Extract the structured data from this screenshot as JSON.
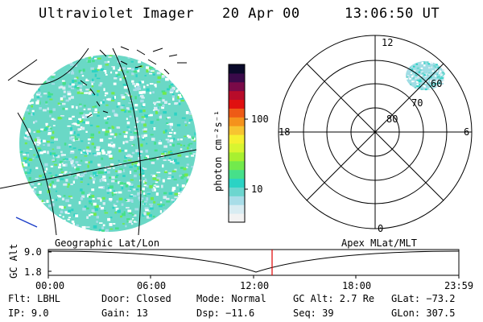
{
  "header": {
    "title": "Ultraviolet Imager",
    "date": "20 Apr 00",
    "time": "13:06:50 UT"
  },
  "colorbar": {
    "unit_label": "photon cm⁻²s⁻¹",
    "tick_100": "100",
    "tick_10": "10",
    "colors": [
      "#f2f2f2",
      "#d8ecf2",
      "#a8dde8",
      "#6cd6cf",
      "#2bd3c4",
      "#46e08a",
      "#72ea4c",
      "#a8f030",
      "#d8f530",
      "#f5f030",
      "#f7c430",
      "#f5921c",
      "#ee5a16",
      "#e01010",
      "#b80c2a",
      "#7a0a48",
      "#3a0a4a",
      "#0a0a2a"
    ]
  },
  "polar_plot": {
    "label_top": "12",
    "label_bottom": "0",
    "label_left": "18",
    "label_right": "6",
    "ring_80": "80",
    "ring_70": "70",
    "ring_60": "60",
    "frame_label": "Apex MLat/MLT"
  },
  "geo_plot": {
    "frame_label": "Geographic Lat/Lon"
  },
  "orbit_plot": {
    "axis_label": "GC Alt",
    "y_top": "9.0",
    "y_bottom": "1.8",
    "x_ticks": [
      "00:00",
      "06:00",
      "12:00",
      "18:00",
      "23:59"
    ],
    "marker_color": "#e00000"
  },
  "info": {
    "flt": "Flt: LBHL",
    "ip": "IP:  9.0",
    "door": "Door: Closed",
    "gain": "Gain: 13",
    "mode": "Mode: Normal",
    "dsp": "Dsp:  −11.6",
    "gcalt": "GC Alt: 2.7 Re",
    "seq": "Seq: 39",
    "glat": "GLat: −73.2",
    "glon": "GLon: 307.5"
  }
}
